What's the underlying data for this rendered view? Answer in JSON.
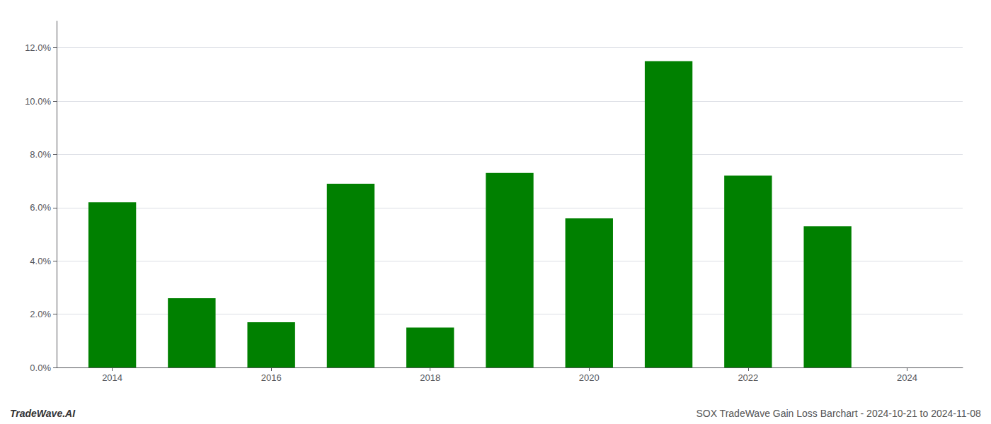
{
  "chart_data": {
    "type": "bar",
    "x": [
      2014,
      2015,
      2016,
      2017,
      2018,
      2019,
      2020,
      2021,
      2022,
      2023
    ],
    "values": [
      0.062,
      0.026,
      0.017,
      0.069,
      0.015,
      0.073,
      0.056,
      0.115,
      0.072,
      0.053
    ],
    "color": "#008000",
    "xlim": [
      2013.3,
      2024.7
    ],
    "xticks": [
      2014,
      2016,
      2018,
      2020,
      2022,
      2024
    ],
    "ylim": [
      0,
      0.13
    ],
    "yticks": [
      {
        "value": 0.0,
        "label": "0.0%"
      },
      {
        "value": 0.02,
        "label": "2.0%"
      },
      {
        "value": 0.04,
        "label": "4.0%"
      },
      {
        "value": 0.06,
        "label": "6.0%"
      },
      {
        "value": 0.08,
        "label": "8.0%"
      },
      {
        "value": 0.1,
        "label": "10.0%"
      },
      {
        "value": 0.12,
        "label": "12.0%"
      }
    ],
    "grid": true,
    "annotations": [
      "TradeWave.AI",
      "SOX TradeWave Gain Loss Barchart - 2024-10-21 to 2024-11-08"
    ]
  }
}
